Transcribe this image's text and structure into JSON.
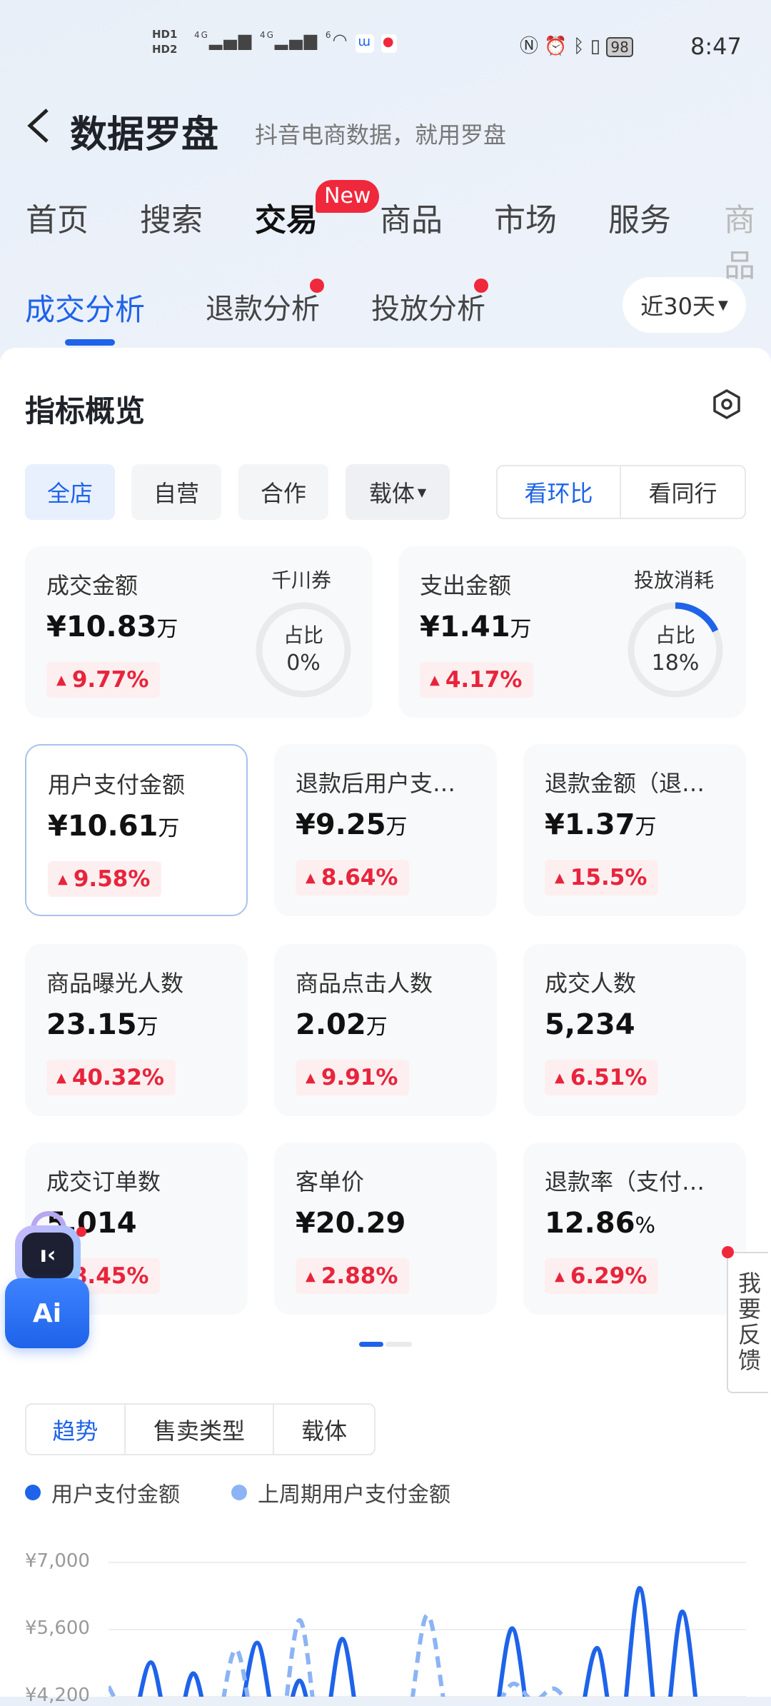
{
  "status_bar": {
    "sim1": "HD1",
    "sim2": "HD2",
    "network1": "4G",
    "network2": "4G",
    "wifi": "6",
    "battery": "98",
    "time": "8:47"
  },
  "header": {
    "title": "数据罗盘",
    "subtitle": "抖音电商数据，就用罗盘"
  },
  "top_tabs": [
    {
      "label": "首页"
    },
    {
      "label": "搜索"
    },
    {
      "label": "交易",
      "active": true,
      "badge": "New"
    },
    {
      "label": "商品"
    },
    {
      "label": "市场"
    },
    {
      "label": "服务"
    },
    {
      "label": "商品"
    }
  ],
  "sub_tabs": [
    {
      "label": "成交分析",
      "active": true
    },
    {
      "label": "退款分析",
      "dot": true
    },
    {
      "label": "投放分析",
      "dot": true
    }
  ],
  "date_range": "近30天",
  "overview": {
    "title": "指标概览",
    "filters": [
      "全店",
      "自营",
      "合作",
      "载体"
    ],
    "compare": [
      "看环比",
      "看同行"
    ],
    "big_cards": [
      {
        "label": "成交金额",
        "value": "¥10.83",
        "unit": "万",
        "change": "9.77%",
        "ring_title": "千川券",
        "ring_label": "占比",
        "ring_value": "0%",
        "ring_fraction": 0
      },
      {
        "label": "支出金额",
        "value": "¥1.41",
        "unit": "万",
        "change": "4.17%",
        "ring_title": "投放消耗",
        "ring_label": "占比",
        "ring_value": "18%",
        "ring_fraction": 0.18
      }
    ],
    "metrics": [
      {
        "label": "用户支付金额",
        "value": "¥10.61",
        "unit": "万",
        "change": "9.58%",
        "selected": true
      },
      {
        "label": "退款后用户支…",
        "value": "¥9.25",
        "unit": "万",
        "change": "8.64%"
      },
      {
        "label": "退款金额（退…",
        "value": "¥1.37",
        "unit": "万",
        "change": "15.5%"
      },
      {
        "label": "商品曝光人数",
        "value": "23.15",
        "unit": "万",
        "change": "40.32%"
      },
      {
        "label": "商品点击人数",
        "value": "2.02",
        "unit": "万",
        "change": "9.91%"
      },
      {
        "label": "成交人数",
        "value": "5,234",
        "unit": "",
        "change": "6.51%"
      },
      {
        "label": "成交订单数",
        "value": "5,014",
        "unit": "",
        "change": "8.45%"
      },
      {
        "label": "客单价",
        "value": "¥20.29",
        "unit": "",
        "change": "2.88%"
      },
      {
        "label": "退款率（支付…",
        "value": "12.86",
        "unit": "%",
        "change": "6.29%"
      }
    ],
    "page_dots": {
      "count": 2,
      "active": 0
    }
  },
  "floating": {
    "ai_label": "Ai",
    "feedback": "我要反馈"
  },
  "trend_tabs": [
    "趋势",
    "售卖类型",
    "载体"
  ],
  "colors": {
    "accent": "#1e63e9",
    "light_series": "#8cb4f5",
    "up_red": "#e8243c"
  },
  "chart_data": {
    "type": "line",
    "series": [
      {
        "name": "用户支付金额",
        "style": "solid",
        "color": "#1e63e9",
        "values": [
          3000,
          3300,
          4900,
          3200,
          4670,
          3000,
          3400,
          5310,
          3300,
          4520,
          3100,
          5390,
          3000,
          3000,
          3000,
          3000,
          3000,
          3000,
          3200,
          5610,
          3100,
          3000,
          3300,
          5200,
          3100,
          6450,
          3000,
          5960,
          3000,
          3000,
          3000
        ]
      },
      {
        "name": "上周期用户支付金额",
        "style": "dashed",
        "color": "#8cb4f5",
        "values": [
          4400,
          3600,
          3200,
          3000,
          3000,
          3300,
          5170,
          3200,
          3100,
          5780,
          3000,
          3000,
          3000,
          3000,
          3400,
          5890,
          3600,
          3000,
          3700,
          4450,
          4100,
          4350,
          3800,
          3300,
          3000,
          3000,
          3000,
          3000,
          3000,
          3000,
          3000
        ]
      }
    ],
    "yticks": [
      "¥7,000",
      "¥5,600",
      "¥4,200"
    ],
    "ylim_visible": [
      4200,
      7000
    ],
    "grid": true,
    "legend": "top-left"
  }
}
